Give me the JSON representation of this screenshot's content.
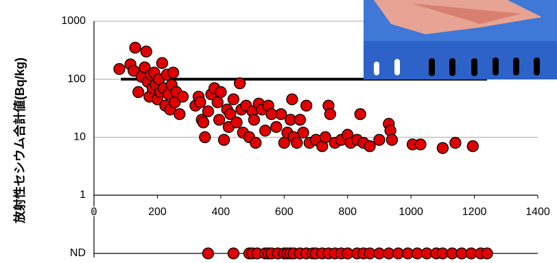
{
  "chart_data": {
    "type": "scatter",
    "y_label": "放射性セシウム合計値(Bq/kg)",
    "log_scale": true,
    "grid": true,
    "xlim": [
      0,
      1400
    ],
    "xticks": [
      0,
      200,
      400,
      600,
      800,
      1000,
      1200,
      1400
    ],
    "ylim": [
      1,
      1000
    ],
    "yticks": [
      1,
      10,
      100,
      1000
    ],
    "reference_line": {
      "y": 100,
      "x": [
        85,
        1240
      ]
    },
    "nd_label": "ND",
    "series": [
      {
        "color": "#e00000",
        "x": [
          80,
          115,
          130,
          165,
          125,
          140,
          150,
          160,
          170,
          175,
          180,
          185,
          190,
          195,
          200,
          205,
          210,
          215,
          220,
          225,
          230,
          235,
          240,
          245,
          250,
          255,
          260,
          270,
          280,
          320,
          330,
          335,
          340,
          345,
          350,
          360,
          370,
          380,
          390,
          395,
          400,
          410,
          420,
          425,
          430,
          440,
          450,
          460,
          465,
          470,
          480,
          490,
          500,
          505,
          510,
          520,
          530,
          540,
          550,
          560,
          575,
          590,
          600,
          610,
          620,
          625,
          630,
          640,
          650,
          660,
          670,
          680,
          700,
          720,
          730,
          740,
          745,
          760,
          780,
          800,
          810,
          830,
          840,
          850,
          870,
          900,
          930,
          935,
          940,
          1005,
          1030,
          1100,
          1140,
          1195
        ],
        "y": [
          150,
          180,
          350,
          300,
          140,
          60,
          110,
          160,
          90,
          50,
          120,
          70,
          130,
          80,
          45,
          100,
          60,
          190,
          70,
          35,
          120,
          55,
          30,
          80,
          130,
          40,
          60,
          25,
          50,
          35,
          50,
          40,
          20,
          18,
          10,
          28,
          55,
          70,
          40,
          20,
          60,
          9,
          30,
          15,
          25,
          45,
          18,
          85,
          30,
          12,
          35,
          10,
          28,
          20,
          8,
          38,
          30,
          13,
          35,
          25,
          15,
          25,
          8,
          12,
          20,
          45,
          10,
          8,
          20,
          12,
          35,
          8,
          9,
          7,
          10,
          35,
          25,
          8,
          9,
          11,
          8,
          9,
          25,
          8,
          7,
          9,
          17,
          13,
          9,
          7.5,
          7.5,
          6.5,
          8,
          7
        ]
      },
      {
        "color": "#e00000",
        "nd_x": [
          360,
          440,
          490,
          500,
          515,
          540,
          550,
          560,
          580,
          600,
          610,
          620,
          630,
          650,
          670,
          690,
          700,
          720,
          740,
          760,
          780,
          800,
          830,
          850,
          870,
          900,
          930,
          960,
          990,
          1020,
          1050,
          1080,
          1100,
          1130,
          1160,
          1190,
          1220,
          1240
        ]
      }
    ]
  }
}
